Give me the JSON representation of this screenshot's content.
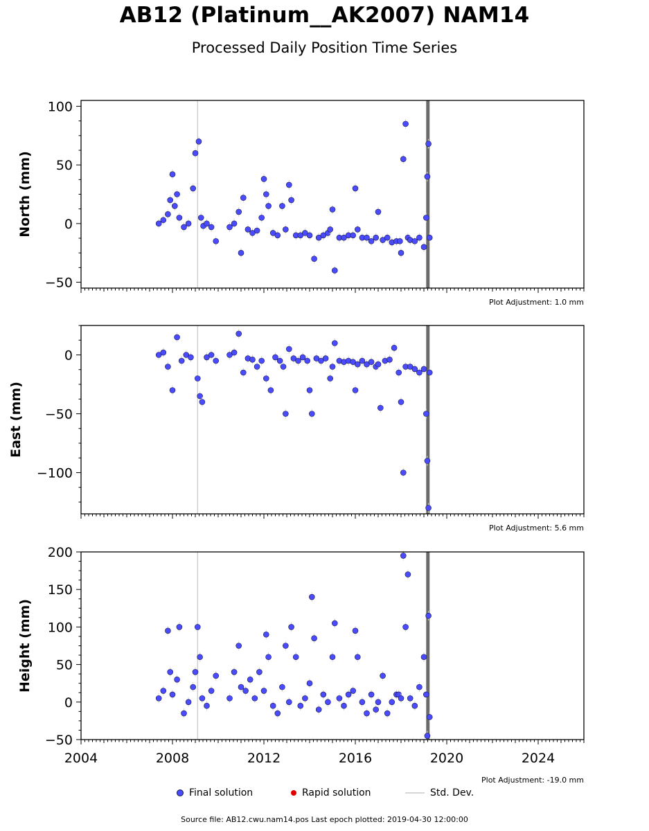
{
  "title": "AB12 (Platinum__AK2007) NAM14",
  "subtitle": "Processed Daily Position Time Series",
  "legend": {
    "final": "Final solution",
    "rapid": "Rapid solution",
    "stddev": "Std. Dev."
  },
  "footer": "Source file: AB12.cwu.nam14.pos  Last epoch plotted: 2019-04-30 12:00:00",
  "colors": {
    "final": "#4a4aff",
    "final_edge": "#1a1a40",
    "rapid": "#e00000",
    "stddev": "#d6d6d6",
    "event_line": "#d0d0d0",
    "dense_band": "#6a6a6a"
  },
  "chart_data": [
    {
      "type": "scatter",
      "ylabel": "North (mm)",
      "xlim": [
        2004,
        2026
      ],
      "ylim": [
        -55,
        105
      ],
      "yticks": [
        -50,
        0,
        50,
        100
      ],
      "adjustment": "Plot Adjustment: 1.0 mm",
      "event_lines": [
        2009.1
      ],
      "dense_band": [
        2019.1,
        2019.25
      ],
      "series": [
        {
          "name": "Final solution",
          "x": [
            2007.4,
            2007.6,
            2007.8,
            2007.9,
            2008.0,
            2008.1,
            2008.2,
            2008.3,
            2008.5,
            2008.7,
            2008.9,
            2009.0,
            2009.15,
            2009.25,
            2009.35,
            2009.5,
            2009.7,
            2009.9,
            2010.5,
            2010.7,
            2010.9,
            2011.0,
            2011.1,
            2011.3,
            2011.5,
            2011.7,
            2011.9,
            2012.0,
            2012.1,
            2012.2,
            2012.4,
            2012.6,
            2012.8,
            2012.95,
            2013.1,
            2013.2,
            2013.4,
            2013.6,
            2013.8,
            2014.0,
            2014.2,
            2014.4,
            2014.6,
            2014.8,
            2014.9,
            2015.0,
            2015.1,
            2015.3,
            2015.5,
            2015.7,
            2015.9,
            2016.0,
            2016.1,
            2016.3,
            2016.5,
            2016.7,
            2016.9,
            2017.0,
            2017.2,
            2017.4,
            2017.6,
            2017.8,
            2017.95,
            2018.0,
            2018.1,
            2018.2,
            2018.3,
            2018.4,
            2018.6,
            2018.8,
            2019.0,
            2019.1,
            2019.15,
            2019.2,
            2019.25
          ],
          "y": [
            0,
            3,
            8,
            20,
            42,
            15,
            25,
            5,
            -3,
            0,
            30,
            60,
            70,
            5,
            -2,
            0,
            -3,
            -15,
            -3,
            0,
            10,
            -25,
            22,
            -5,
            -8,
            -6,
            5,
            38,
            25,
            15,
            -8,
            -10,
            15,
            -5,
            33,
            20,
            -10,
            -10,
            -8,
            -10,
            -30,
            -12,
            -10,
            -8,
            -5,
            12,
            -40,
            -12,
            -12,
            -10,
            -10,
            30,
            -5,
            -12,
            -12,
            -15,
            -12,
            10,
            -14,
            -12,
            -16,
            -15,
            -15,
            -25,
            55,
            85,
            -12,
            -14,
            -15,
            -12,
            -20,
            5,
            40,
            68,
            -12
          ]
        }
      ]
    },
    {
      "type": "scatter",
      "ylabel": "East (mm)",
      "xlim": [
        2004,
        2026
      ],
      "ylim": [
        -135,
        25
      ],
      "yticks": [
        -100,
        -50,
        0
      ],
      "adjustment": "Plot Adjustment: 5.6 mm",
      "event_lines": [
        2009.1
      ],
      "dense_band": [
        2019.1,
        2019.25
      ],
      "series": [
        {
          "name": "Final solution",
          "x": [
            2007.4,
            2007.6,
            2007.8,
            2008.0,
            2008.2,
            2008.4,
            2008.6,
            2008.8,
            2009.1,
            2009.2,
            2009.3,
            2009.5,
            2009.7,
            2009.9,
            2010.5,
            2010.7,
            2010.9,
            2011.1,
            2011.3,
            2011.5,
            2011.7,
            2011.9,
            2012.1,
            2012.3,
            2012.5,
            2012.7,
            2012.85,
            2012.95,
            2013.1,
            2013.3,
            2013.5,
            2013.7,
            2013.9,
            2014.0,
            2014.1,
            2014.3,
            2014.5,
            2014.7,
            2014.9,
            2015.0,
            2015.1,
            2015.3,
            2015.5,
            2015.7,
            2015.9,
            2016.0,
            2016.1,
            2016.3,
            2016.5,
            2016.7,
            2016.9,
            2017.0,
            2017.1,
            2017.3,
            2017.5,
            2017.7,
            2017.9,
            2018.0,
            2018.1,
            2018.2,
            2018.4,
            2018.6,
            2018.8,
            2019.0,
            2019.1,
            2019.15,
            2019.2,
            2019.25
          ],
          "y": [
            0,
            2,
            -10,
            -30,
            15,
            -5,
            0,
            -2,
            -20,
            -35,
            -40,
            -2,
            0,
            -5,
            0,
            2,
            18,
            -15,
            -3,
            -4,
            -10,
            -5,
            -20,
            -30,
            -2,
            -5,
            -10,
            -50,
            5,
            -3,
            -5,
            -2,
            -5,
            -30,
            -50,
            -3,
            -5,
            -3,
            -20,
            -10,
            10,
            -5,
            -6,
            -5,
            -6,
            -30,
            -8,
            -5,
            -8,
            -6,
            -10,
            -8,
            -45,
            -5,
            -4,
            6,
            -15,
            -40,
            -100,
            -10,
            -10,
            -12,
            -15,
            -12,
            -50,
            -90,
            -130,
            -15
          ]
        }
      ]
    },
    {
      "type": "scatter",
      "ylabel": "Height (mm)",
      "xlim": [
        2004,
        2026
      ],
      "ylim": [
        -50,
        200
      ],
      "yticks": [
        -50,
        0,
        50,
        100,
        150,
        200
      ],
      "xticks": [
        2004,
        2008,
        2012,
        2016,
        2020,
        2024
      ],
      "adjustment": "Plot Adjustment: -19.0 mm",
      "event_lines": [
        2009.1
      ],
      "dense_band": [
        2019.1,
        2019.25
      ],
      "series": [
        {
          "name": "Final solution",
          "x": [
            2007.4,
            2007.6,
            2007.8,
            2007.9,
            2008.0,
            2008.2,
            2008.3,
            2008.5,
            2008.7,
            2008.9,
            2009.0,
            2009.1,
            2009.2,
            2009.3,
            2009.5,
            2009.7,
            2009.9,
            2010.5,
            2010.7,
            2010.9,
            2011.0,
            2011.2,
            2011.4,
            2011.6,
            2011.8,
            2012.0,
            2012.1,
            2012.2,
            2012.4,
            2012.6,
            2012.8,
            2012.95,
            2013.1,
            2013.2,
            2013.4,
            2013.6,
            2013.8,
            2014.0,
            2014.1,
            2014.2,
            2014.4,
            2014.6,
            2014.8,
            2015.0,
            2015.1,
            2015.3,
            2015.5,
            2015.7,
            2015.9,
            2016.0,
            2016.1,
            2016.3,
            2016.5,
            2016.7,
            2016.9,
            2017.0,
            2017.2,
            2017.4,
            2017.6,
            2017.8,
            2017.9,
            2018.0,
            2018.1,
            2018.2,
            2018.3,
            2018.4,
            2018.6,
            2018.8,
            2019.0,
            2019.1,
            2019.15,
            2019.2,
            2019.25
          ],
          "y": [
            5,
            15,
            95,
            40,
            10,
            30,
            100,
            -15,
            0,
            20,
            40,
            100,
            60,
            5,
            -5,
            15,
            35,
            5,
            40,
            75,
            20,
            15,
            30,
            5,
            40,
            15,
            90,
            60,
            -5,
            -15,
            20,
            75,
            0,
            100,
            60,
            -5,
            5,
            25,
            140,
            85,
            -10,
            10,
            0,
            60,
            105,
            5,
            -5,
            10,
            15,
            95,
            60,
            0,
            -15,
            10,
            -10,
            0,
            35,
            -15,
            0,
            10,
            10,
            5,
            195,
            100,
            170,
            5,
            -5,
            20,
            60,
            10,
            -45,
            115,
            -20
          ]
        }
      ]
    }
  ]
}
